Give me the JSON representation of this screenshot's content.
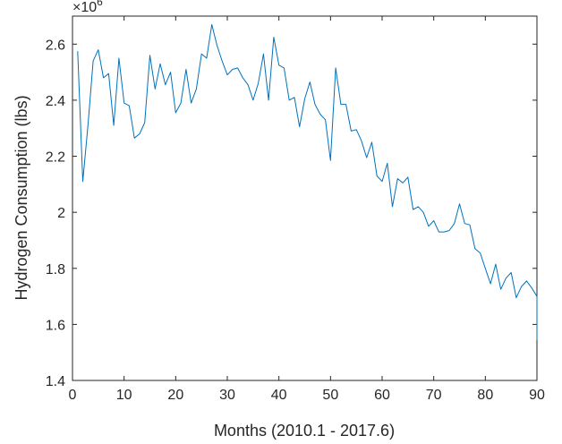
{
  "chart_data": {
    "type": "line",
    "xlabel": "Months (2010.1 - 2017.6)",
    "ylabel": "Hydrogen Consumption (lbs)",
    "y_exponent_label": "×10",
    "y_exponent_power": "6",
    "xlim": [
      0,
      90
    ],
    "ylim": [
      1.4,
      2.7
    ],
    "x_ticks": [
      0,
      10,
      20,
      30,
      40,
      50,
      60,
      70,
      80,
      90
    ],
    "x_tick_labels": [
      "0",
      "10",
      "20",
      "30",
      "40",
      "50",
      "60",
      "70",
      "80",
      "90"
    ],
    "y_ticks": [
      1.4,
      1.6,
      1.8,
      2.0,
      2.2,
      2.4,
      2.6
    ],
    "y_tick_labels": [
      "1.4",
      "1.6",
      "1.8",
      "2",
      "2.2",
      "2.4",
      "2.6"
    ],
    "grid": false,
    "line_color": "#0072BD",
    "series": [
      {
        "x": [
          1,
          2,
          3,
          4,
          5,
          6,
          7,
          8,
          9,
          10,
          11,
          12,
          13,
          14,
          15,
          16,
          17,
          18,
          19,
          20,
          21,
          22,
          23,
          24,
          25,
          26,
          27,
          28,
          29,
          30,
          31,
          32,
          33,
          34,
          35,
          36,
          37,
          38,
          39,
          40,
          41,
          42,
          43,
          44,
          45,
          46,
          47,
          48,
          49,
          50,
          51,
          52,
          53,
          54,
          55,
          56,
          57,
          58,
          59,
          60,
          61,
          62,
          63,
          64,
          65,
          66,
          67,
          68,
          69,
          70,
          71,
          72,
          73,
          74,
          75,
          76,
          77,
          78,
          79,
          80,
          81,
          82,
          83,
          84,
          85,
          86,
          87,
          88,
          89,
          90
        ],
        "values": [
          2.575,
          2.11,
          2.31,
          2.54,
          2.58,
          2.48,
          2.495,
          2.31,
          2.55,
          2.39,
          2.38,
          2.265,
          2.28,
          2.32,
          2.56,
          2.44,
          2.53,
          2.455,
          2.5,
          2.355,
          2.39,
          2.51,
          2.39,
          2.44,
          2.565,
          2.55,
          2.67,
          2.595,
          2.54,
          2.49,
          2.51,
          2.515,
          2.48,
          2.455,
          2.4,
          2.46,
          2.565,
          2.4,
          2.625,
          2.525,
          2.515,
          2.4,
          2.41,
          2.305,
          2.405,
          2.465,
          2.385,
          2.35,
          2.33,
          2.185,
          2.515,
          2.385,
          2.385,
          2.29,
          2.295,
          2.255,
          2.195,
          2.25,
          2.13,
          2.11,
          2.175,
          2.02,
          2.12,
          2.105,
          2.125,
          2.01,
          2.02,
          2.0,
          1.95,
          1.97,
          1.93,
          1.93,
          1.935,
          1.96,
          2.03,
          1.96,
          1.955,
          1.87,
          1.855,
          1.8,
          1.745,
          1.815,
          1.725,
          1.765,
          1.785,
          1.695,
          1.735,
          1.755,
          1.73,
          1.7
        ]
      },
      {
        "x": [
          90
        ],
        "values": [
          1.545
        ]
      }
    ]
  }
}
